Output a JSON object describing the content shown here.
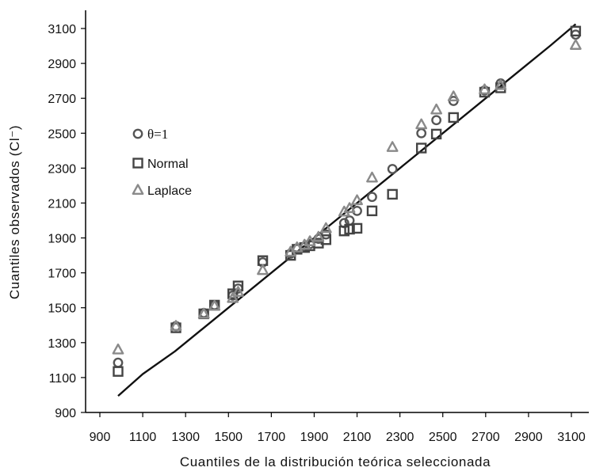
{
  "chart_data": {
    "type": "scatter",
    "xlabel": "Cuantiles de la distribución teórica seleccionada",
    "ylabel": "Cuantiles observados (Cl⁻)",
    "xlim": [
      900,
      3100
    ],
    "ylim": [
      900,
      3100
    ],
    "xticks": [
      900,
      1100,
      1300,
      1500,
      1700,
      1900,
      2100,
      2300,
      2500,
      2700,
      2900,
      3100
    ],
    "yticks": [
      900,
      1100,
      1300,
      1500,
      1700,
      1900,
      2100,
      2300,
      2500,
      2700,
      2900,
      3100
    ],
    "grid": false,
    "legend_position": "left",
    "series": [
      {
        "name": "θ=1",
        "marker": "circle",
        "color": "#555555",
        "points": [
          [
            985,
            1185
          ],
          [
            1255,
            1395
          ],
          [
            1385,
            1470
          ],
          [
            1435,
            1515
          ],
          [
            1520,
            1570
          ],
          [
            1545,
            1610
          ],
          [
            1660,
            1760
          ],
          [
            1790,
            1810
          ],
          [
            1820,
            1840
          ],
          [
            1855,
            1850
          ],
          [
            1880,
            1865
          ],
          [
            1920,
            1895
          ],
          [
            1955,
            1920
          ],
          [
            2040,
            1985
          ],
          [
            2065,
            2000
          ],
          [
            2100,
            2055
          ],
          [
            2170,
            2135
          ],
          [
            2265,
            2295
          ],
          [
            2400,
            2500
          ],
          [
            2470,
            2575
          ],
          [
            2550,
            2685
          ],
          [
            2695,
            2745
          ],
          [
            2770,
            2785
          ],
          [
            3120,
            3065
          ]
        ]
      },
      {
        "name": "Normal",
        "marker": "square",
        "color": "#444444",
        "points": [
          [
            985,
            1135
          ],
          [
            1255,
            1385
          ],
          [
            1385,
            1465
          ],
          [
            1435,
            1515
          ],
          [
            1520,
            1580
          ],
          [
            1545,
            1625
          ],
          [
            1660,
            1770
          ],
          [
            1790,
            1800
          ],
          [
            1820,
            1835
          ],
          [
            1855,
            1845
          ],
          [
            1880,
            1855
          ],
          [
            1920,
            1870
          ],
          [
            1955,
            1890
          ],
          [
            2040,
            1940
          ],
          [
            2065,
            1950
          ],
          [
            2100,
            1955
          ],
          [
            2170,
            2055
          ],
          [
            2265,
            2150
          ],
          [
            2400,
            2415
          ],
          [
            2470,
            2495
          ],
          [
            2550,
            2590
          ],
          [
            2695,
            2735
          ],
          [
            2770,
            2760
          ],
          [
            3120,
            3085
          ]
        ]
      },
      {
        "name": "Laplace",
        "marker": "triangle",
        "color": "#8a8a8a",
        "points": [
          [
            985,
            1260
          ],
          [
            1255,
            1395
          ],
          [
            1385,
            1465
          ],
          [
            1435,
            1510
          ],
          [
            1520,
            1555
          ],
          [
            1545,
            1590
          ],
          [
            1660,
            1715
          ],
          [
            1790,
            1820
          ],
          [
            1820,
            1845
          ],
          [
            1855,
            1860
          ],
          [
            1880,
            1880
          ],
          [
            1920,
            1905
          ],
          [
            1955,
            1955
          ],
          [
            2040,
            2050
          ],
          [
            2065,
            2070
          ],
          [
            2100,
            2115
          ],
          [
            2170,
            2245
          ],
          [
            2265,
            2420
          ],
          [
            2400,
            2550
          ],
          [
            2470,
            2635
          ],
          [
            2550,
            2710
          ],
          [
            2695,
            2750
          ],
          [
            2770,
            2775
          ],
          [
            3120,
            3005
          ]
        ]
      }
    ],
    "reference_line": [
      [
        985,
        995
      ],
      [
        1100,
        1120
      ],
      [
        1250,
        1250
      ],
      [
        1300,
        1300
      ],
      [
        1500,
        1500
      ],
      [
        1700,
        1700
      ],
      [
        1900,
        1900
      ],
      [
        2100,
        2100
      ],
      [
        2300,
        2300
      ],
      [
        2500,
        2500
      ],
      [
        2700,
        2700
      ],
      [
        2900,
        2900
      ],
      [
        3000,
        3000
      ],
      [
        3120,
        3125
      ]
    ]
  }
}
